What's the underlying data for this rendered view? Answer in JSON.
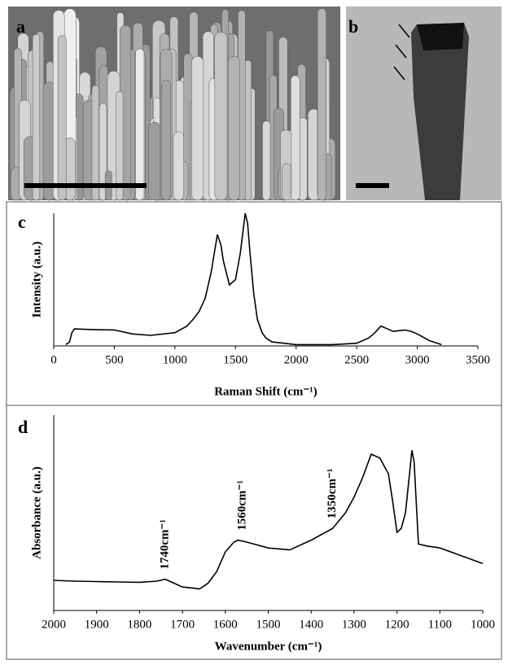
{
  "images": [
    {
      "label": "a"
    },
    {
      "label": "b"
    }
  ],
  "chart_data": [
    {
      "type": "line",
      "panel_label": "c",
      "x_label": "Raman Shift (cm⁻¹)",
      "y_label": "Intensity (a.u.)",
      "xlim": [
        0,
        3500
      ],
      "xticks": [
        0,
        500,
        1000,
        1500,
        2000,
        2500,
        3000,
        3500
      ],
      "ylim": [
        0,
        5
      ],
      "color": "#000000",
      "x": [
        100,
        130,
        150,
        170,
        300,
        500,
        650,
        800,
        1000,
        1100,
        1150,
        1200,
        1250,
        1300,
        1350,
        1380,
        1400,
        1450,
        1500,
        1540,
        1580,
        1600,
        1620,
        1650,
        1680,
        1720,
        1750,
        1800,
        1900,
        2000,
        2300,
        2500,
        2600,
        2650,
        2700,
        2750,
        2800,
        2900,
        2950,
        3000,
        3100,
        3200
      ],
      "values": [
        0.05,
        0.15,
        0.5,
        0.64,
        0.62,
        0.6,
        0.45,
        0.4,
        0.5,
        0.75,
        1.0,
        1.3,
        1.8,
        2.8,
        4.2,
        3.8,
        3.2,
        2.3,
        2.5,
        3.5,
        5.0,
        4.6,
        3.5,
        2.0,
        1.0,
        0.5,
        0.3,
        0.15,
        0.1,
        0.05,
        0.05,
        0.1,
        0.3,
        0.5,
        0.75,
        0.65,
        0.55,
        0.6,
        0.55,
        0.45,
        0.2,
        0.05
      ]
    },
    {
      "type": "line",
      "panel_label": "d",
      "x_label": "Wavenumber (cm⁻¹)",
      "y_label": "Absorbance (a.u.)",
      "xlim": [
        2000,
        1000
      ],
      "xticks": [
        2000,
        1900,
        1800,
        1700,
        1600,
        1500,
        1400,
        1300,
        1200,
        1100,
        1000
      ],
      "ylim": [
        0,
        5
      ],
      "color": "#000000",
      "x": [
        2000,
        1950,
        1900,
        1850,
        1800,
        1760,
        1740,
        1720,
        1700,
        1680,
        1660,
        1640,
        1620,
        1600,
        1580,
        1570,
        1550,
        1500,
        1450,
        1400,
        1350,
        1320,
        1300,
        1280,
        1260,
        1250,
        1240,
        1220,
        1210,
        1200,
        1190,
        1180,
        1165,
        1160,
        1150,
        1130,
        1100,
        1050,
        1000
      ],
      "values": [
        0.77,
        0.75,
        0.74,
        0.73,
        0.72,
        0.75,
        0.8,
        0.7,
        0.6,
        0.58,
        0.55,
        0.7,
        1.0,
        1.5,
        1.75,
        1.8,
        1.75,
        1.6,
        1.55,
        1.8,
        2.1,
        2.5,
        2.9,
        3.4,
        4.0,
        3.95,
        3.9,
        3.5,
        2.8,
        2.0,
        2.1,
        2.5,
        4.1,
        3.8,
        1.7,
        1.65,
        1.6,
        1.4,
        1.2
      ],
      "annotations": [
        {
          "text": "1740cm⁻¹",
          "x": 1740
        },
        {
          "text": "1560cm⁻¹",
          "x": 1560
        },
        {
          "text": "1350cm⁻¹",
          "x": 1350
        }
      ]
    }
  ]
}
